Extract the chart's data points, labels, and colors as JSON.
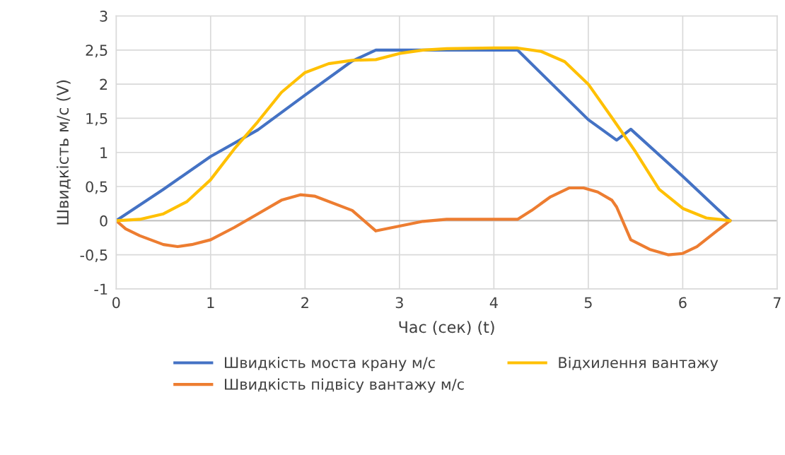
{
  "chart_data": {
    "type": "line",
    "xlabel": "Час (сек) (t)",
    "ylabel": "Швидкість м/с (V)",
    "xlim": [
      0,
      7
    ],
    "xticks": [
      0,
      1,
      2,
      3,
      4,
      5,
      6,
      7
    ],
    "ylim": [
      -1,
      3
    ],
    "yticks": [
      {
        "value": -1,
        "label": "-1"
      },
      {
        "value": -0.5,
        "label": "-0,5"
      },
      0,
      {
        "value": 0.5,
        "label": "0,5"
      },
      1,
      {
        "value": 1.5,
        "label": "1,5"
      },
      2,
      {
        "value": 2.5,
        "label": "2,5"
      },
      3
    ],
    "grid": true,
    "legend": "bottom",
    "marker": "none",
    "line_style": "solid",
    "series": [
      {
        "name": "Швидкість моста крану м/с",
        "color": "#4472c4",
        "x": [
          0,
          0.5,
          1,
          1.5,
          2,
          2.5,
          2.75,
          4.25,
          5,
          5.3,
          5.45,
          6,
          6.5
        ],
        "values": [
          0,
          0.46,
          0.94,
          1.33,
          1.84,
          2.34,
          2.5,
          2.5,
          1.48,
          1.18,
          1.34,
          0.65,
          0
        ]
      },
      {
        "name": "Швидкість підвісу вантажу м/с",
        "color": "#ed7d31",
        "x": [
          0,
          0.1,
          0.25,
          0.5,
          0.65,
          0.8,
          1,
          1.25,
          1.5,
          1.75,
          1.95,
          2.1,
          2.5,
          2.75,
          3,
          3.25,
          3.5,
          4.25,
          4.4,
          4.6,
          4.8,
          4.95,
          5.1,
          5.25,
          5.3,
          5.45,
          5.65,
          5.85,
          6,
          6.15,
          6.5
        ],
        "values": [
          0,
          -0.12,
          -0.22,
          -0.35,
          -0.38,
          -0.35,
          -0.28,
          -0.1,
          0.1,
          0.3,
          0.38,
          0.36,
          0.15,
          -0.15,
          -0.08,
          -0.01,
          0.02,
          0.02,
          0.15,
          0.35,
          0.48,
          0.48,
          0.42,
          0.3,
          0.2,
          -0.28,
          -0.42,
          -0.5,
          -0.48,
          -0.38,
          0
        ]
      },
      {
        "name": "Відхилення вантажу",
        "color": "#ffc000",
        "x": [
          0,
          0.25,
          0.5,
          0.75,
          1,
          1.25,
          1.5,
          1.75,
          2,
          2.25,
          2.5,
          2.75,
          3,
          3.25,
          3.5,
          4,
          4.25,
          4.5,
          4.75,
          5,
          5.25,
          5.5,
          5.75,
          6,
          6.25,
          6.5
        ],
        "values": [
          0,
          0.02,
          0.1,
          0.28,
          0.6,
          1.05,
          1.45,
          1.88,
          2.17,
          2.3,
          2.35,
          2.36,
          2.45,
          2.5,
          2.52,
          2.53,
          2.53,
          2.48,
          2.33,
          2.0,
          1.51,
          1.01,
          0.46,
          0.18,
          0.04,
          0
        ]
      }
    ]
  }
}
